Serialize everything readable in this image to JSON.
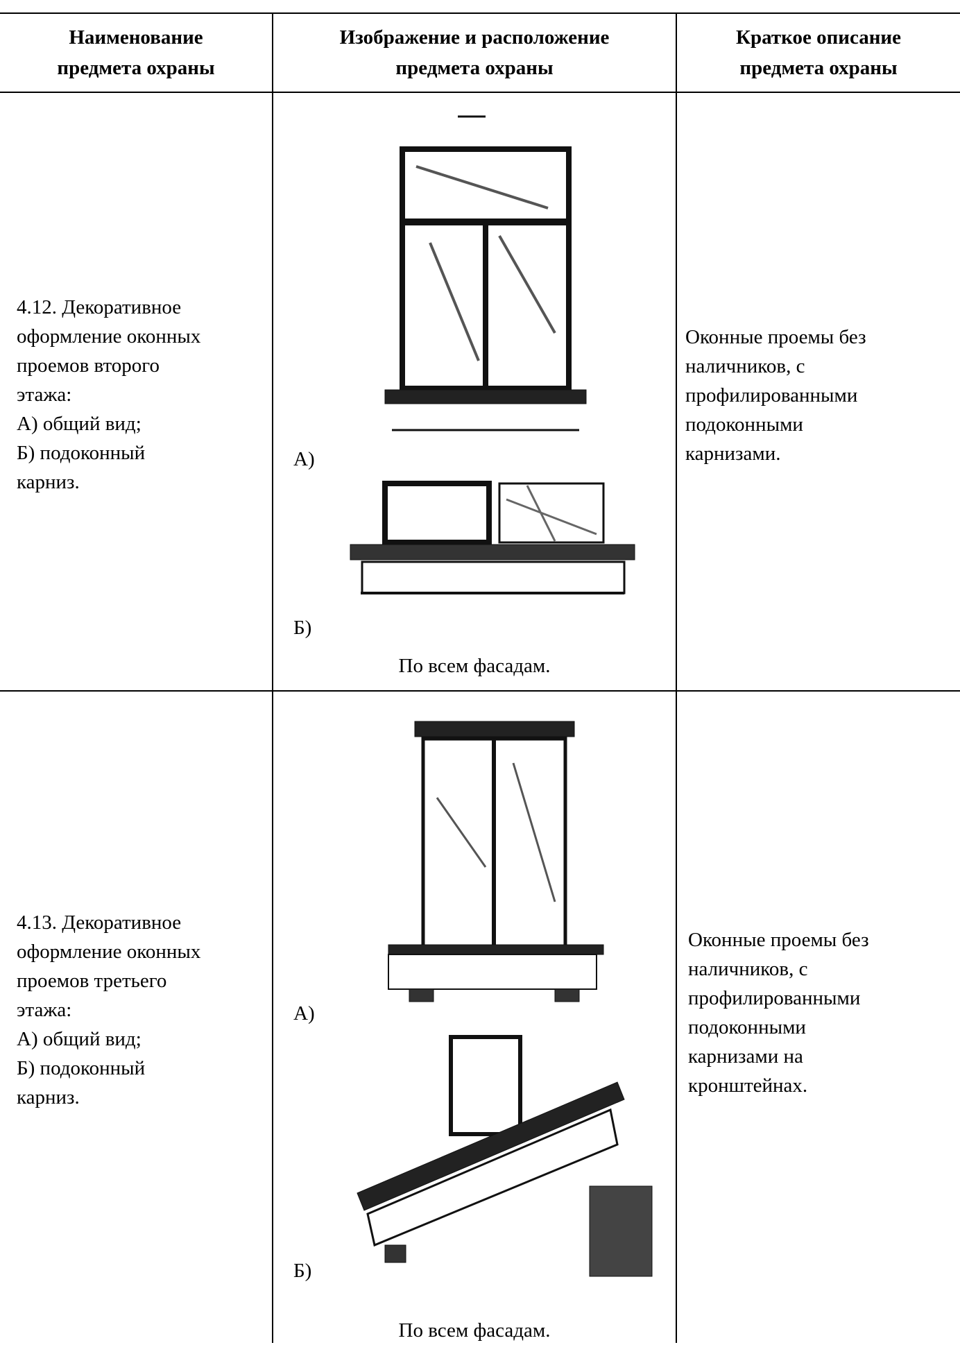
{
  "table": {
    "header": [
      [
        "Наименование",
        "предмета охраны"
      ],
      [
        "Изображение и расположение",
        "предмета охраны"
      ],
      [
        "Краткое описание",
        "предмета охраны"
      ]
    ],
    "rows": [
      {
        "name": [
          "4.12.  Декоративное",
          "оформление оконных",
          "проемов второго",
          "этажа:",
          "А) общий вид;",
          "Б) подоконный",
          "карниз."
        ],
        "label_a": "А)",
        "label_b": "Б)",
        "location": "По всем фасадам.",
        "description": [
          "Оконные проемы без",
          "наличников, с",
          "профилированными",
          "подоконными",
          "карнизами."
        ]
      },
      {
        "name": [
          "4.13.  Декоративное",
          "оформление оконных",
          "проемов третьего",
          "этажа:",
          "А) общий вид;",
          "Б) подоконный",
          "карниз."
        ],
        "label_a": "А)",
        "label_b": "Б)",
        "location": "По всем фасадам.",
        "description": [
          "Оконные проемы без",
          "наличников, с",
          "профилированными",
          "подоконными",
          "карнизами на",
          "кронштейнах."
        ]
      }
    ]
  }
}
